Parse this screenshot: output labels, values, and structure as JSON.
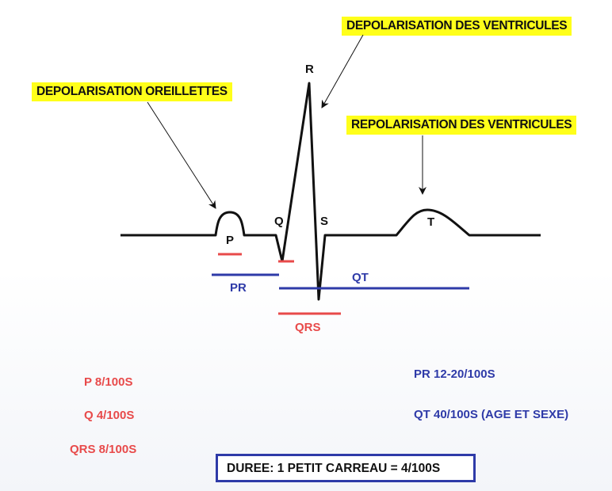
{
  "labels": {
    "depol_oreillettes": "DEPOLARISATION OREILLETTES",
    "depol_ventricules": "DEPOLARISATION DES VENTRICULES",
    "repol_ventricules": "REPOLARISATION DES VENTRICULES"
  },
  "waves": {
    "p": "P",
    "q": "Q",
    "r": "R",
    "s": "S",
    "t": "T"
  },
  "intervals": {
    "pr": "PR",
    "qt": "QT",
    "qrs": "QRS"
  },
  "durations_left": {
    "p": "P   8/100S",
    "q": "Q   4/100S",
    "qrs": "QRS  8/100S"
  },
  "durations_right": {
    "pr": "PR   12-20/100S",
    "qt": "QT   40/100S (AGE ET SEXE)"
  },
  "footer": "DUREE:   1 PETIT CARREAU = 4/100S",
  "colors": {
    "label_bg": "#ffff1a",
    "red": "#e84a4a",
    "blue": "#2e3aa8",
    "trace": "#111111"
  }
}
